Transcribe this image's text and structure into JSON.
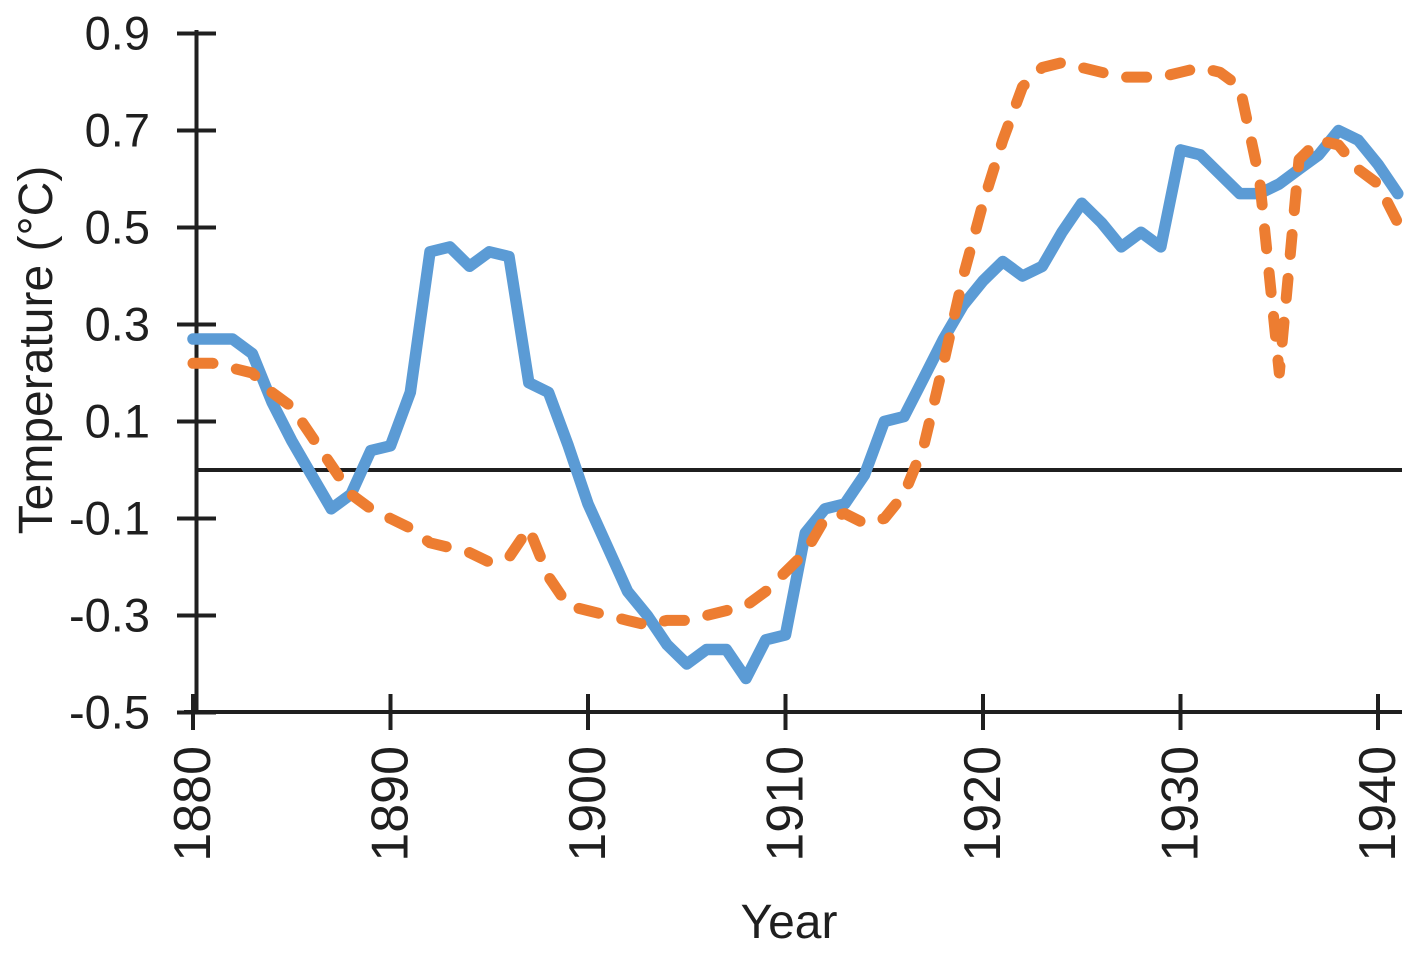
{
  "chart_data": {
    "type": "line",
    "title": "",
    "xlabel": "Year",
    "ylabel": "Temperature (°C)",
    "xlim": [
      1880,
      1941
    ],
    "ylim": [
      -0.5,
      0.9
    ],
    "baseline": 0,
    "grid": false,
    "legend": "none",
    "background": "#ffffff",
    "axis_color": "#1f1f1f",
    "x_ticks": {
      "values": [
        1880,
        1890,
        1900,
        1910,
        1920,
        1930,
        1940
      ],
      "labels": [
        "1880",
        "1890",
        "1900",
        "1910",
        "1920",
        "1930",
        "1940"
      ]
    },
    "y_ticks": {
      "values": [
        0.9,
        0.7,
        0.5,
        0.3,
        0.1,
        -0.1,
        -0.3,
        -0.5
      ],
      "labels": [
        "0.9",
        "0.7",
        "0.5",
        "0.3",
        "0.1",
        "-0.1",
        "-0.3",
        "-0.5"
      ]
    },
    "x": [
      1880,
      1881,
      1882,
      1883,
      1884,
      1885,
      1886,
      1887,
      1888,
      1889,
      1890,
      1891,
      1892,
      1893,
      1894,
      1895,
      1896,
      1897,
      1898,
      1899,
      1900,
      1901,
      1902,
      1903,
      1904,
      1905,
      1906,
      1907,
      1908,
      1909,
      1910,
      1911,
      1912,
      1913,
      1914,
      1915,
      1916,
      1917,
      1918,
      1919,
      1920,
      1921,
      1922,
      1923,
      1924,
      1925,
      1926,
      1927,
      1928,
      1929,
      1930,
      1931,
      1932,
      1933,
      1934,
      1935,
      1936,
      1937,
      1938,
      1939,
      1940,
      1941
    ],
    "series": [
      {
        "name": "solid-blue-series",
        "color": "#5B9BD5",
        "style": "solid",
        "width": 11.5,
        "values": [
          0.27,
          0.27,
          0.27,
          0.24,
          0.14,
          0.06,
          -0.01,
          -0.08,
          -0.05,
          0.04,
          0.05,
          0.16,
          0.45,
          0.46,
          0.42,
          0.45,
          0.44,
          0.18,
          0.16,
          0.05,
          -0.07,
          -0.16,
          -0.25,
          -0.3,
          -0.36,
          -0.4,
          -0.37,
          -0.37,
          -0.43,
          -0.35,
          -0.34,
          -0.13,
          -0.08,
          -0.07,
          -0.01,
          0.1,
          0.11,
          0.19,
          0.27,
          0.34,
          0.39,
          0.43,
          0.4,
          0.42,
          0.49,
          0.55,
          0.51,
          0.46,
          0.49,
          0.46,
          0.66,
          0.65,
          0.61,
          0.57,
          0.57,
          0.59,
          0.62,
          0.65,
          0.7,
          0.68,
          0.63,
          0.57
        ]
      },
      {
        "name": "dashed-orange-series",
        "color": "#ED7D31",
        "style": "dashed",
        "dash": [
          20,
          24
        ],
        "width": 11,
        "values": [
          0.22,
          0.22,
          0.21,
          0.2,
          0.16,
          0.13,
          0.07,
          0.01,
          -0.05,
          -0.08,
          -0.1,
          -0.12,
          -0.15,
          -0.16,
          -0.17,
          -0.19,
          -0.18,
          -0.12,
          -0.22,
          -0.28,
          -0.29,
          -0.3,
          -0.31,
          -0.32,
          -0.31,
          -0.31,
          -0.3,
          -0.29,
          -0.28,
          -0.25,
          -0.21,
          -0.17,
          -0.1,
          -0.09,
          -0.11,
          -0.1,
          -0.05,
          0.05,
          0.22,
          0.4,
          0.55,
          0.68,
          0.79,
          0.83,
          0.84,
          0.83,
          0.82,
          0.81,
          0.81,
          0.81,
          0.82,
          0.83,
          0.82,
          0.79,
          0.6,
          0.2,
          0.64,
          0.68,
          0.67,
          0.62,
          0.59,
          0.51
        ]
      }
    ]
  }
}
